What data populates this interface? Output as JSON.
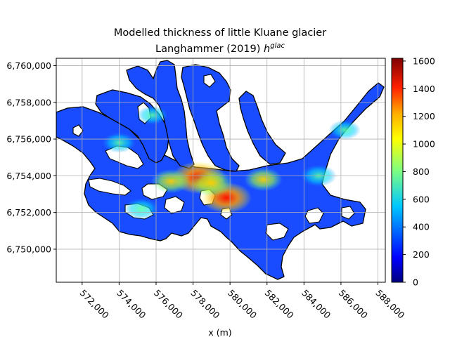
{
  "title": {
    "line1": "Modelled thickness of little Kluane glacier",
    "line2_prefix": "Langhammer (2019) ",
    "line2_math_h": "h",
    "line2_math_sup": "glac"
  },
  "xlabel": "x (m)",
  "x_ticks": [
    "572,000",
    "574,000",
    "576,000",
    "578,000",
    "580,000",
    "582,000",
    "584,000",
    "586,000",
    "588,000"
  ],
  "y_ticks": [
    "6,750,000",
    "6,752,000",
    "6,754,000",
    "6,756,000",
    "6,758,000",
    "6,760,000"
  ],
  "colorbar": {
    "ticks": [
      "0",
      "200",
      "400",
      "600",
      "800",
      "1000",
      "1200",
      "1400",
      "1600"
    ],
    "colormap": "jet",
    "range": [
      0,
      1620
    ]
  },
  "chart_data": {
    "type": "heatmap",
    "title": "Modelled thickness of little Kluane glacier Langhammer (2019) h^glac",
    "xlabel": "x (m)",
    "ylabel": "",
    "xlim": [
      570600,
      588400
    ],
    "ylim": [
      6748200,
      6760400
    ],
    "grid": true,
    "colormap": "jet",
    "value_range": [
      0,
      1620
    ],
    "hotspots": [
      {
        "x": 578300,
        "y": 6753900,
        "value": 1400
      },
      {
        "x": 579800,
        "y": 6752800,
        "value": 1300
      },
      {
        "x": 579000,
        "y": 6753600,
        "value": 1000
      },
      {
        "x": 576800,
        "y": 6753700,
        "value": 850
      },
      {
        "x": 581800,
        "y": 6753800,
        "value": 800
      },
      {
        "x": 584800,
        "y": 6754000,
        "value": 700
      },
      {
        "x": 575200,
        "y": 6752200,
        "value": 650
      },
      {
        "x": 574000,
        "y": 6755800,
        "value": 600
      },
      {
        "x": 586200,
        "y": 6756500,
        "value": 550
      },
      {
        "x": 575800,
        "y": 6757300,
        "value": 500
      }
    ]
  }
}
